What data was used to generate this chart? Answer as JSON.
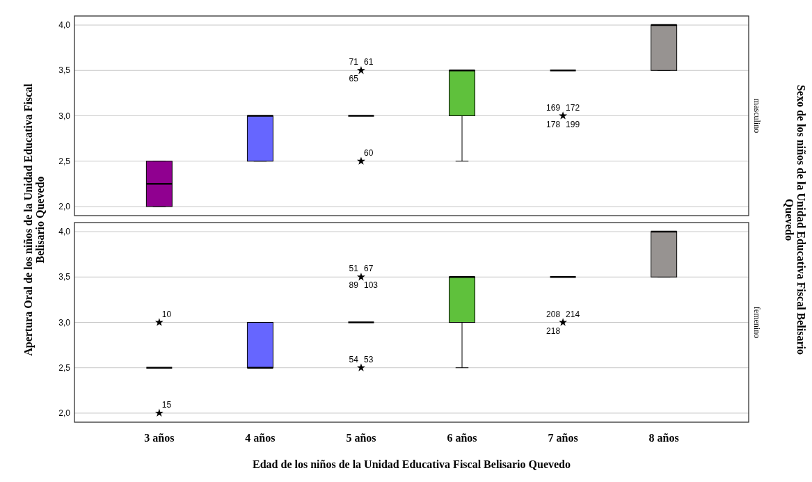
{
  "chart_data": [
    {
      "type": "box",
      "title": "masculino",
      "ylabel": "Apertura Oral de los niños de la Unidad Educativa Fiscal Belisario Quevedo",
      "categories": [
        "3 años",
        "4 años",
        "5 años",
        "6 años",
        "7 años",
        "8 años"
      ],
      "colors": [
        "#900090",
        "#6666ff",
        null,
        "#5fc13c",
        null,
        "#979391"
      ],
      "boxes": [
        {
          "low": 2.0,
          "q1": 2.0,
          "median": 2.25,
          "q3": 2.5,
          "high": 2.5
        },
        {
          "low": 2.5,
          "q1": 2.5,
          "median": 3.0,
          "q3": 3.0,
          "high": 3.0
        },
        {
          "low": 3.0,
          "q1": 3.0,
          "median": 3.0,
          "q3": 3.0,
          "high": 3.0
        },
        {
          "low": 2.5,
          "q1": 3.0,
          "median": 3.5,
          "q3": 3.5,
          "high": 3.5
        },
        {
          "low": 3.5,
          "q1": 3.5,
          "median": 3.5,
          "q3": 3.5,
          "high": 3.5
        },
        {
          "low": 3.5,
          "q1": 3.5,
          "median": 4.0,
          "q3": 4.0,
          "high": 4.0
        }
      ],
      "ylim": [
        1.9,
        4.1
      ],
      "yticks": [
        {
          "value": 2.0,
          "label": "2,0"
        },
        {
          "value": 2.5,
          "label": "2,5"
        },
        {
          "value": 3.0,
          "label": "3,0"
        },
        {
          "value": 3.5,
          "label": "3,5"
        },
        {
          "value": 4.0,
          "label": "4,0"
        }
      ],
      "series": [
        {
          "type": "scatter",
          "color": "#000000",
          "x": [
            "5 años",
            "5 años",
            "7 años"
          ],
          "values": [
            3.5,
            2.5,
            3.0
          ]
        }
      ],
      "grid": "y",
      "marker": "star",
      "tick_labels": "y",
      "annotations": [
        "Sexo de los niños de la Unidad Educativa Fiscal Belisario Quevedo",
        {
          "text": "71",
          "x": "5 años",
          "y": 3.5
        },
        {
          "text": "61",
          "x": "5 años",
          "y": 3.5
        },
        {
          "text": "65",
          "x": "5 años",
          "y": 3.5
        },
        {
          "text": "60",
          "x": "5 años",
          "y": 2.5
        },
        {
          "text": "169",
          "x": "7 años",
          "y": 3.0
        },
        {
          "text": "172",
          "x": "7 años",
          "y": 3.0
        },
        {
          "text": "178",
          "x": "7 años",
          "y": 3.0
        },
        {
          "text": "199",
          "x": "7 años",
          "y": 3.0
        }
      ]
    },
    {
      "type": "box",
      "title": "femenino",
      "xlabel": "Edad de los niños de la Unidad Educativa Fiscal Belisario Quevedo",
      "categories": [
        "3 años",
        "4 años",
        "5 años",
        "6 años",
        "7 años",
        "8 años"
      ],
      "colors": [
        null,
        "#6666ff",
        null,
        "#5fc13c",
        null,
        "#979391"
      ],
      "boxes": [
        {
          "low": 2.5,
          "q1": 2.5,
          "median": 2.5,
          "q3": 2.5,
          "high": 2.5
        },
        {
          "low": 2.5,
          "q1": 2.5,
          "median": 2.5,
          "q3": 3.0,
          "high": 3.0
        },
        {
          "low": 3.0,
          "q1": 3.0,
          "median": 3.0,
          "q3": 3.0,
          "high": 3.0
        },
        {
          "low": 2.5,
          "q1": 3.0,
          "median": 3.5,
          "q3": 3.5,
          "high": 3.5
        },
        {
          "low": 3.5,
          "q1": 3.5,
          "median": 3.5,
          "q3": 3.5,
          "high": 3.5
        },
        {
          "low": 3.5,
          "q1": 3.5,
          "median": 4.0,
          "q3": 4.0,
          "high": 4.0
        }
      ],
      "ylim": [
        1.9,
        4.1
      ],
      "yticks": [
        {
          "value": 2.0,
          "label": "2,0"
        },
        {
          "value": 2.5,
          "label": "2,5"
        },
        {
          "value": 3.0,
          "label": "3,0"
        },
        {
          "value": 3.5,
          "label": "3,5"
        },
        {
          "value": 4.0,
          "label": "4,0"
        }
      ],
      "series": [
        {
          "type": "scatter",
          "color": "#000000",
          "x": [
            "3 años",
            "3 años",
            "5 años",
            "5 años",
            "7 años"
          ],
          "values": [
            3.0,
            2.0,
            3.5,
            2.5,
            3.0
          ]
        }
      ],
      "grid": "y",
      "marker": "star",
      "annotations": [
        {
          "text": "10",
          "x": "3 años",
          "y": 3.0
        },
        {
          "text": "15",
          "x": "3 años",
          "y": 2.0
        },
        {
          "text": "51",
          "x": "5 años",
          "y": 3.5
        },
        {
          "text": "67",
          "x": "5 años",
          "y": 3.5
        },
        {
          "text": "89",
          "x": "5 años",
          "y": 3.5
        },
        {
          "text": "103",
          "x": "5 años",
          "y": 3.5
        },
        {
          "text": "54",
          "x": "5 años",
          "y": 2.5
        },
        {
          "text": "53",
          "x": "5 años",
          "y": 2.5
        },
        {
          "text": "208",
          "x": "7 años",
          "y": 3.0
        },
        {
          "text": "214",
          "x": "7 años",
          "y": 3.0
        },
        {
          "text": "218",
          "x": "7 años",
          "y": 3.0
        }
      ]
    }
  ]
}
